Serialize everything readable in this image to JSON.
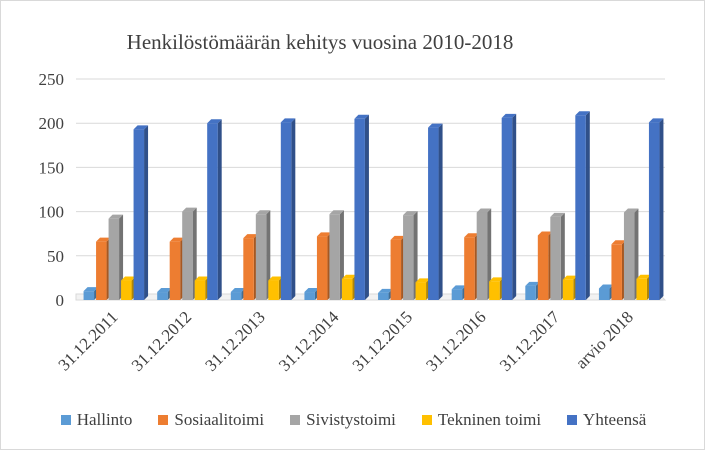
{
  "chart_data": {
    "type": "bar",
    "title": "Henkilöstömäärän kehitys vuosina 2010-2018",
    "categories": [
      "31.12.2011",
      "31.12.2012",
      "31.12.2013",
      "31.12.2014",
      "31.12.2015",
      "31.12.2016",
      "31.12.2017",
      "arvio 2018"
    ],
    "series": [
      {
        "name": "Hallinto",
        "color": "#5b9bd5",
        "values": [
          10,
          9,
          9,
          9,
          8,
          12,
          16,
          13
        ]
      },
      {
        "name": "Sosiaalitoimi",
        "color": "#ed7d31",
        "values": [
          66,
          66,
          70,
          72,
          68,
          71,
          73,
          63
        ]
      },
      {
        "name": "Sivistystoimi",
        "color": "#a5a5a5",
        "values": [
          92,
          100,
          97,
          97,
          96,
          99,
          94,
          99
        ]
      },
      {
        "name": "Tekninen toimi",
        "color": "#ffc000",
        "values": [
          22,
          22,
          22,
          24,
          20,
          21,
          23,
          24
        ]
      },
      {
        "name": "Yhteensä",
        "color": "#4472c4",
        "values": [
          193,
          200,
          201,
          205,
          195,
          206,
          209,
          201
        ]
      }
    ],
    "ylim": [
      0,
      250
    ],
    "yticks": [
      0,
      50,
      100,
      150,
      200,
      250
    ],
    "grid": true,
    "legend": "bottom"
  }
}
